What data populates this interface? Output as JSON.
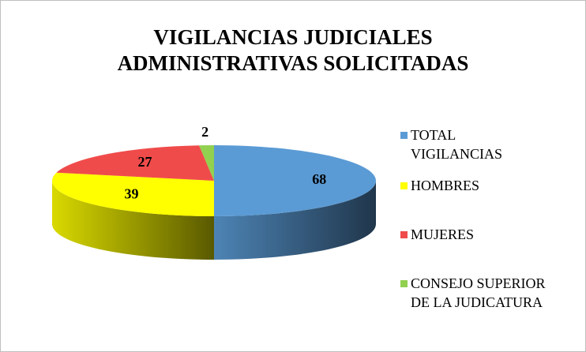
{
  "chart_data": {
    "type": "pie3d",
    "title": "VIGILANCIAS JUDICIALES ADMINISTRATIVAS SOLICITADAS",
    "categories": [
      "TOTAL\nVIGILANCIAS",
      "HOMBRES",
      "MUJERES",
      "CONSEJO SUPERIOR\nDE LA JUDICATURA"
    ],
    "values": [
      68,
      39,
      27,
      2
    ],
    "colors": [
      "#5b9bd5",
      "#ffff00",
      "#f04b4b",
      "#92d050"
    ],
    "legend": "right"
  }
}
